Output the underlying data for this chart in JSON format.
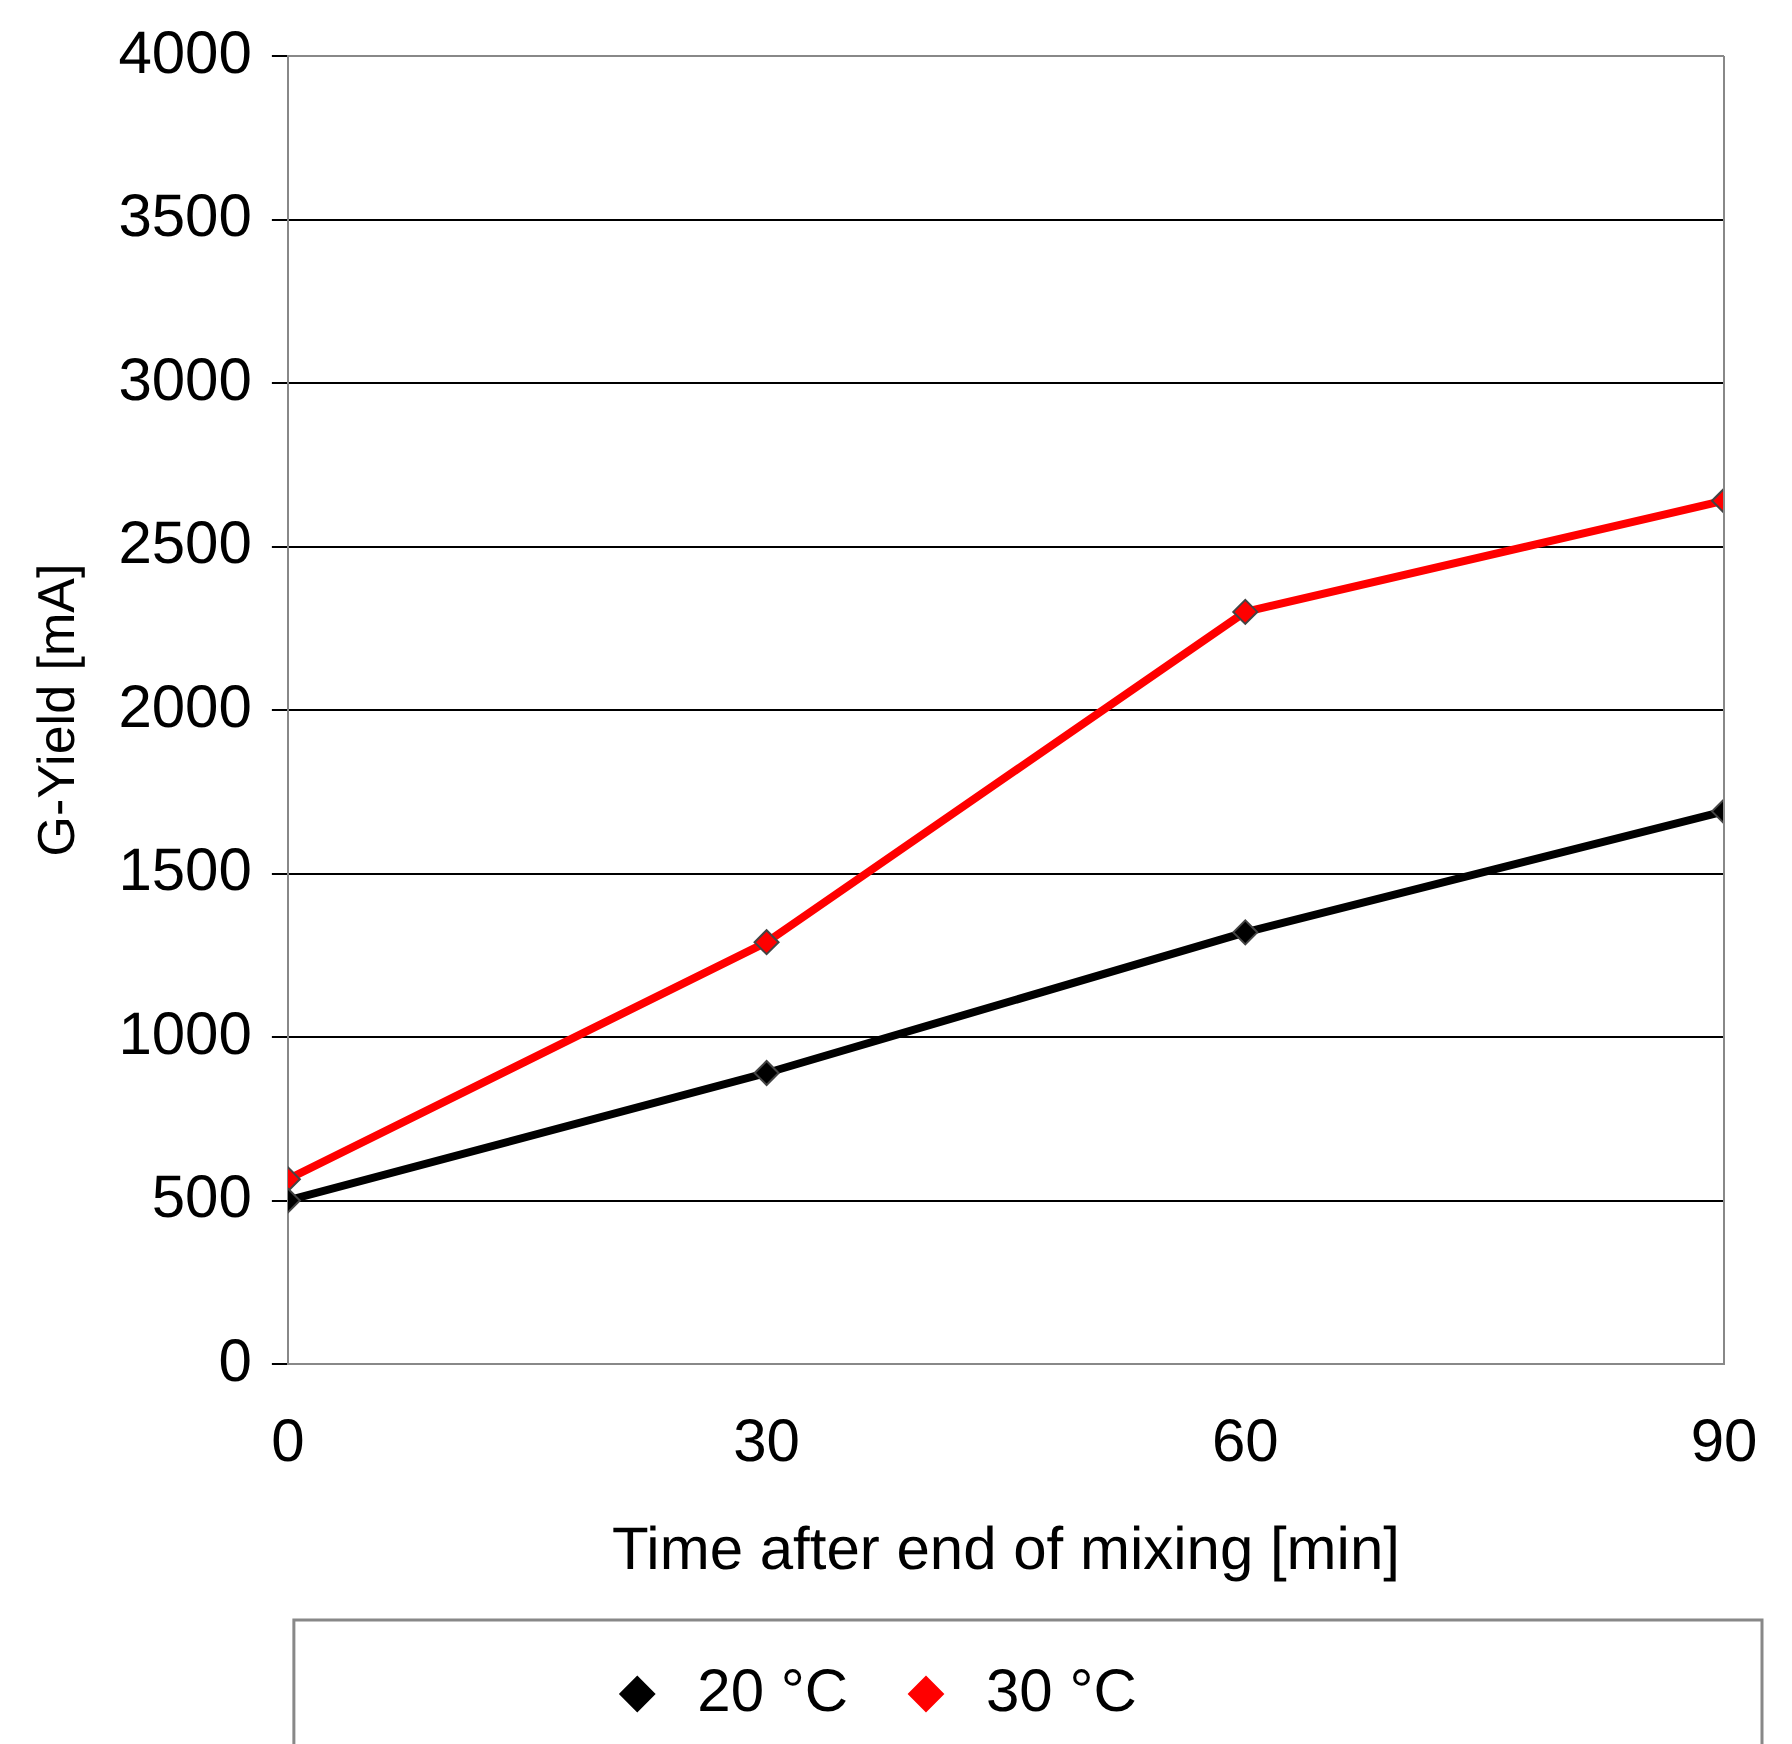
{
  "chart_data": {
    "type": "line",
    "xlabel": "Time after end of mixing [min]",
    "ylabel": "G-Yield [mA]",
    "x": [
      0,
      30,
      60,
      90
    ],
    "series": [
      {
        "name": "20 °C",
        "color": "#000000",
        "values": [
          500,
          890,
          1320,
          1690
        ]
      },
      {
        "name": "30 °C",
        "color": "#ff0000",
        "values": [
          565,
          1290,
          2300,
          2640
        ]
      }
    ],
    "xlim": [
      0,
      90
    ],
    "xticks": [
      0,
      30,
      60,
      90
    ],
    "ylim": [
      0,
      4000
    ],
    "yticks": [
      0,
      500,
      1000,
      1500,
      2000,
      2500,
      3000,
      3500,
      4000
    ],
    "grid": "y",
    "legend": "bottom",
    "marker": "diamond",
    "line_style": "solid"
  }
}
